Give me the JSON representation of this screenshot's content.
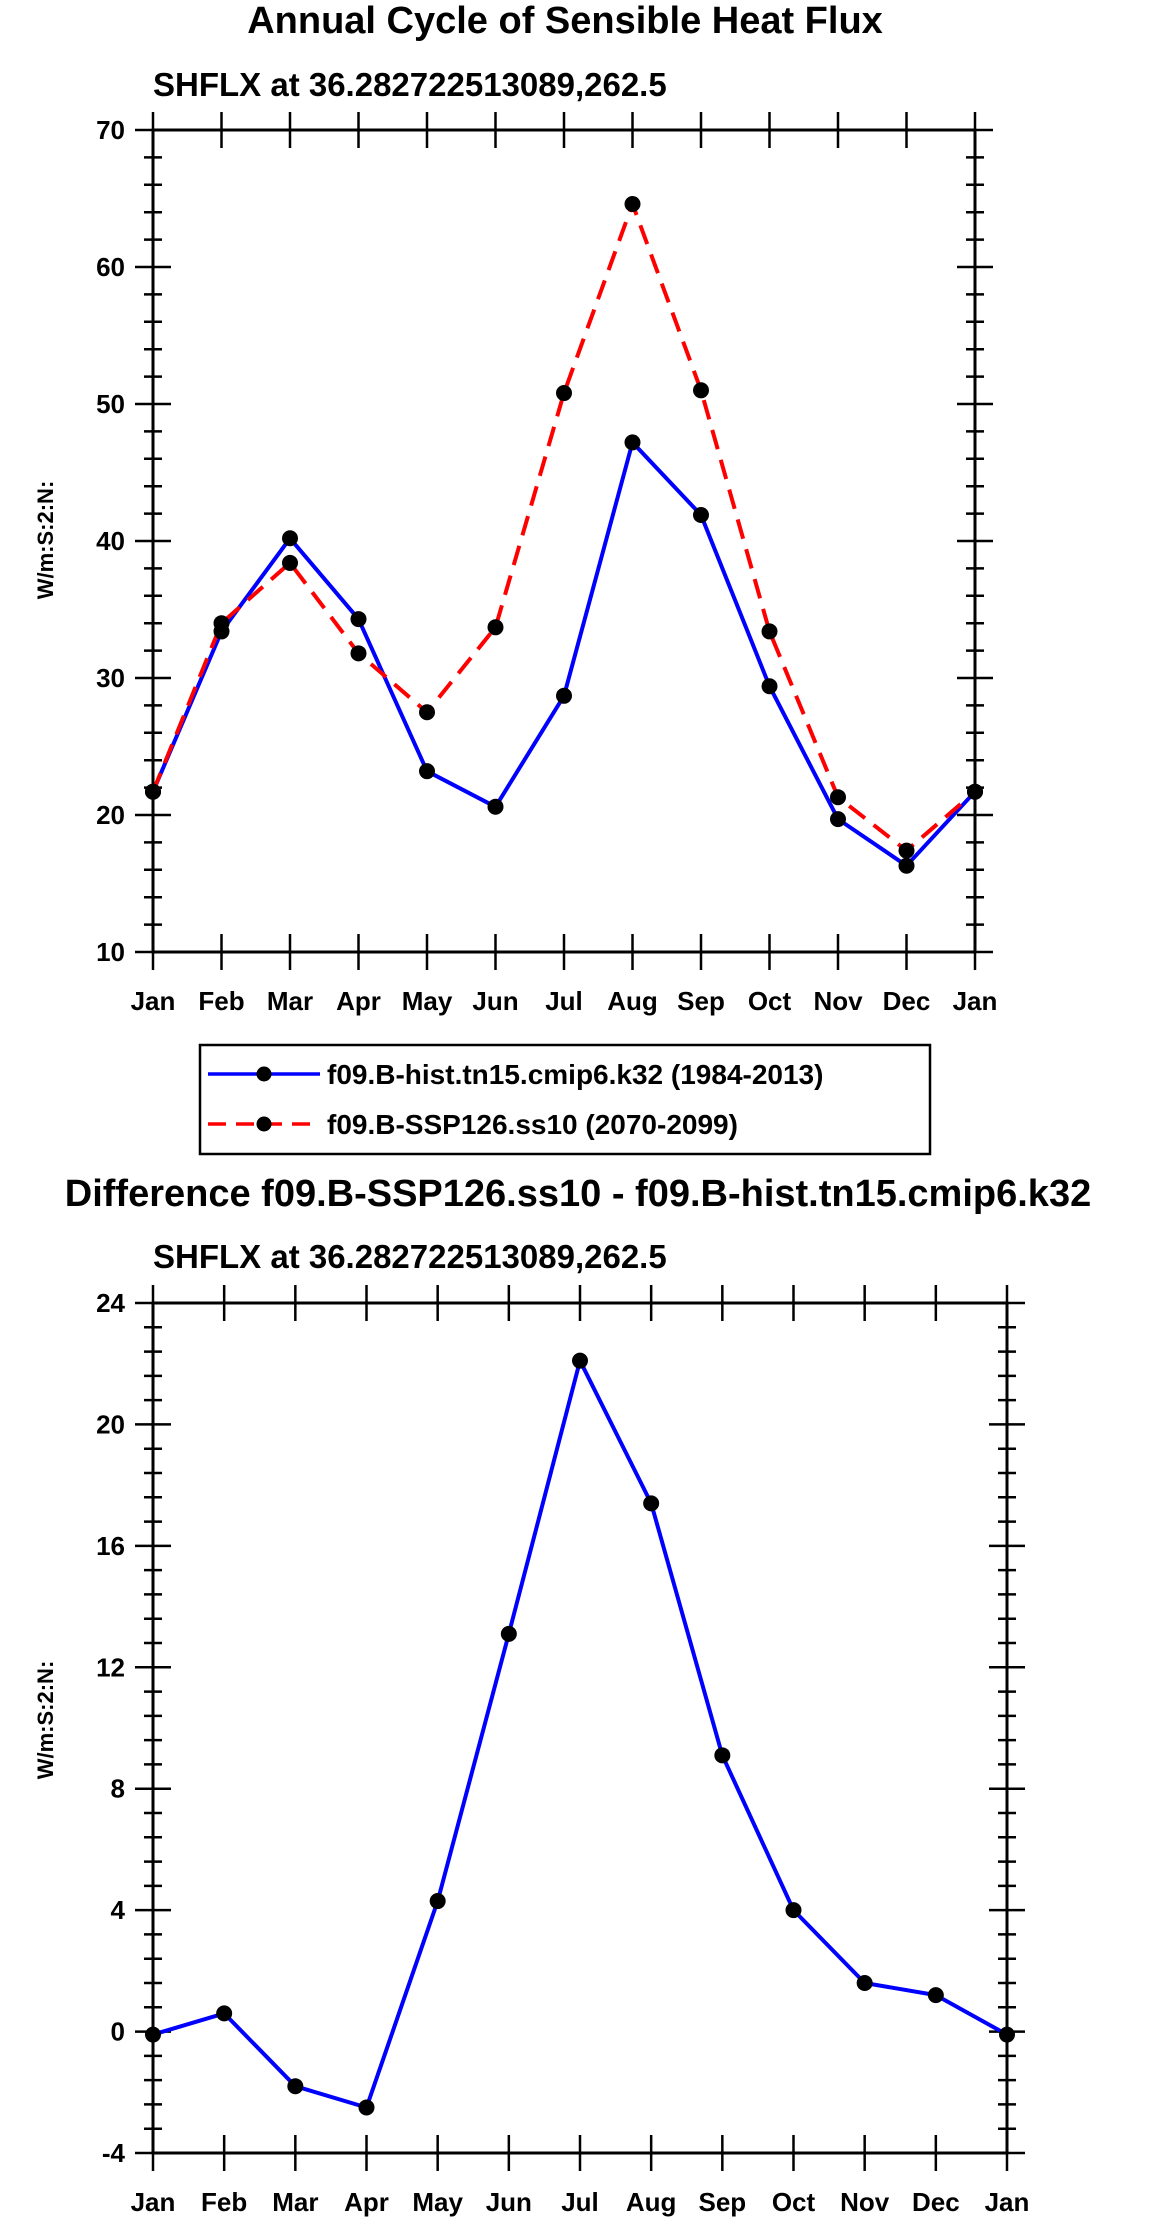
{
  "chart_data": [
    {
      "type": "line",
      "title": "Annual Cycle of Sensible Heat Flux",
      "subtitle": "SHFLX at 36.282722513089,262.5",
      "ylabel": "W/m:S:2:N:",
      "xlabel": "",
      "categories": [
        "Jan",
        "Feb",
        "Mar",
        "Apr",
        "May",
        "Jun",
        "Jul",
        "Aug",
        "Sep",
        "Oct",
        "Nov",
        "Dec",
        "Jan"
      ],
      "ylim": [
        10,
        70
      ],
      "yticks": [
        10,
        20,
        30,
        40,
        50,
        60,
        70
      ],
      "series": [
        {
          "name": "f09.B-hist.tn15.cmip6.k32 (1984-2013)",
          "color": "#0000ff",
          "dash": "solid",
          "values": [
            21.7,
            33.4,
            40.2,
            34.3,
            23.2,
            20.6,
            28.7,
            47.2,
            41.9,
            29.4,
            19.7,
            16.3,
            21.7
          ]
        },
        {
          "name": "f09.B-SSP126.ss10 (2070-2099)",
          "color": "#ff0000",
          "dash": "dashed",
          "values": [
            21.7,
            34.0,
            38.4,
            31.8,
            27.5,
            33.7,
            50.8,
            64.6,
            51.0,
            33.4,
            21.3,
            17.4,
            21.7
          ]
        }
      ],
      "legend": "below"
    },
    {
      "type": "line",
      "title": "Difference f09.B-SSP126.ss10 - f09.B-hist.tn15.cmip6.k32",
      "subtitle": "SHFLX at 36.282722513089,262.5",
      "ylabel": "W/m:S:2:N:",
      "xlabel": "",
      "categories": [
        "Jan",
        "Feb",
        "Mar",
        "Apr",
        "May",
        "Jun",
        "Jul",
        "Aug",
        "Sep",
        "Oct",
        "Nov",
        "Dec",
        "Jan"
      ],
      "ylim": [
        -4,
        24
      ],
      "yticks": [
        -4,
        0,
        4,
        8,
        12,
        16,
        20,
        24
      ],
      "series": [
        {
          "name": "Difference",
          "color": "#0000ff",
          "dash": "solid",
          "values": [
            -0.1,
            0.6,
            -1.8,
            -2.5,
            4.3,
            13.1,
            22.1,
            17.4,
            9.1,
            4.0,
            1.6,
            1.2,
            -0.1
          ]
        }
      ]
    }
  ]
}
